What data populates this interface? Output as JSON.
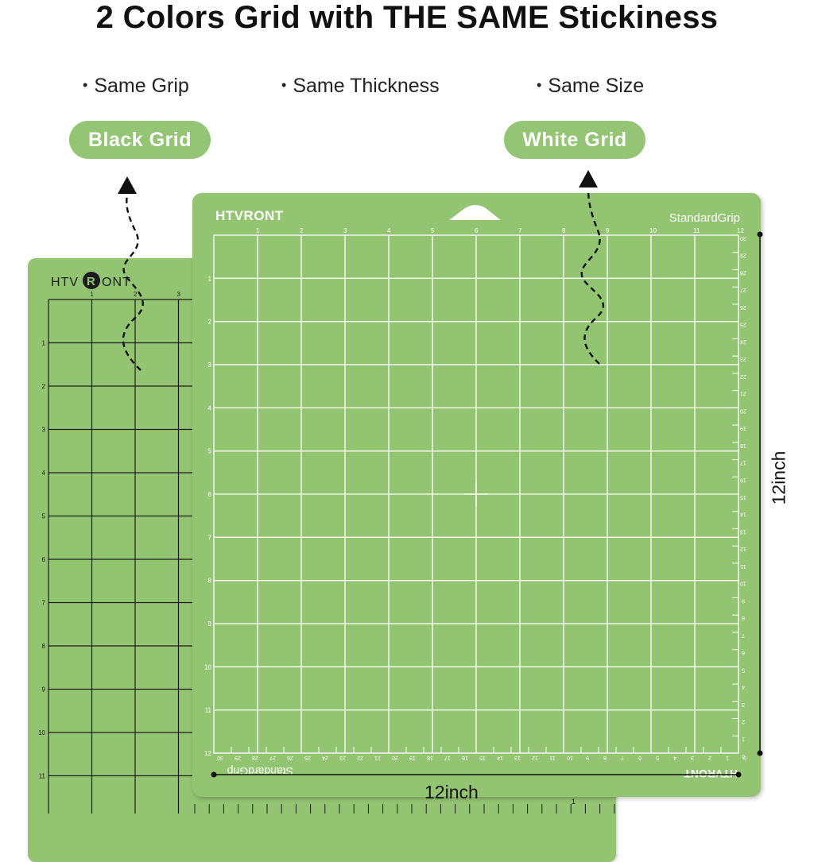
{
  "headline": "2 Colors Grid with THE SAME Stickiness",
  "features": [
    "Same Grip",
    "Same Thickness",
    "Same Size"
  ],
  "bullet_glyph": "•",
  "labels": {
    "black_grid": "Black Grid",
    "white_grid": "White Grid"
  },
  "black_mat": {
    "brand": "HTV",
    "brand_r": "R",
    "brand_tail": "ONT",
    "top_ruler": [
      "1",
      "2",
      "3"
    ],
    "side_ruler": [
      "1",
      "2",
      "3",
      "4",
      "5",
      "6",
      "7",
      "8",
      "9",
      "10",
      "11"
    ],
    "corner_marker": "1"
  },
  "white_mat": {
    "brand": "HTVRONT",
    "grip": "StandardGrip",
    "top_ruler": [
      "1",
      "2",
      "3",
      "4",
      "5",
      "6",
      "7",
      "8",
      "9",
      "10",
      "11",
      "12"
    ],
    "side_ruler": [
      "1",
      "2",
      "3",
      "4",
      "5",
      "6",
      "7",
      "8",
      "9",
      "10",
      "11",
      "12"
    ],
    "right_ruler": [
      "30",
      "29",
      "28",
      "27",
      "26",
      "25",
      "24",
      "23",
      "22",
      "21",
      "20",
      "19",
      "18",
      "17",
      "16",
      "15",
      "14",
      "13",
      "12",
      "11",
      "10",
      "9",
      "8",
      "7",
      "6",
      "5",
      "4",
      "3",
      "2",
      "1",
      "0"
    ],
    "bottom_ruler": [
      "30",
      "29",
      "28",
      "27",
      "26",
      "25",
      "24",
      "23",
      "22",
      "21",
      "20",
      "19",
      "18",
      "17",
      "16",
      "15",
      "14",
      "13",
      "12",
      "11",
      "10",
      "9",
      "8",
      "7",
      "6",
      "5",
      "4",
      "3",
      "2",
      "1",
      "0"
    ],
    "bottom_grip": "StandardGrip",
    "bottom_brand": "HTVRONT"
  },
  "dimensions": {
    "height": "12inch",
    "width": "12inch"
  },
  "colors": {
    "mat_green": "#93c472",
    "pill_green": "#94c574",
    "grid_black": "#1c1c1c",
    "grid_white": "#ffffff"
  }
}
